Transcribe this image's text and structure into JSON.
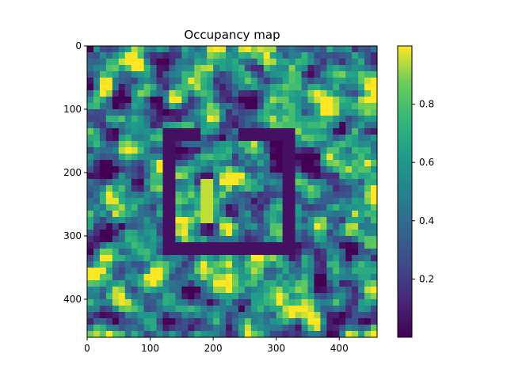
{
  "chart_data": {
    "type": "heatmap",
    "title": "Occupancy map",
    "xlabel": "",
    "ylabel": "",
    "xlim": [
      0,
      460
    ],
    "ylim": [
      460,
      0
    ],
    "x_ticks": [
      0,
      100,
      200,
      300,
      400
    ],
    "y_ticks": [
      0,
      100,
      200,
      300,
      400
    ],
    "colormap": "viridis",
    "colorbar": {
      "range": [
        0.0,
        1.0
      ],
      "ticks": [
        "0.2",
        "0.4",
        "0.6",
        "0.8"
      ],
      "tick_values": [
        0.2,
        0.4,
        0.6,
        0.8
      ]
    },
    "colors": {
      "low": "#440154",
      "mid_low": "#3b528b",
      "mid": "#21918c",
      "mid_high": "#5ec962",
      "high": "#fde725"
    },
    "grid": false,
    "noise_seed": 7,
    "features": [
      {
        "name": "room-outline",
        "kind": "rect-outline",
        "x0": 130,
        "y0": 140,
        "x1": 320,
        "y1": 320,
        "value": 0.05,
        "thickness": 14
      },
      {
        "name": "door-gap-top",
        "kind": "gap",
        "x0": 180,
        "y0": 140,
        "x1": 245,
        "y1": 140
      },
      {
        "name": "interior-bright-streak",
        "kind": "bar",
        "x0": 185,
        "y0": 210,
        "x1": 200,
        "y1": 280,
        "value": 0.95
      }
    ]
  }
}
